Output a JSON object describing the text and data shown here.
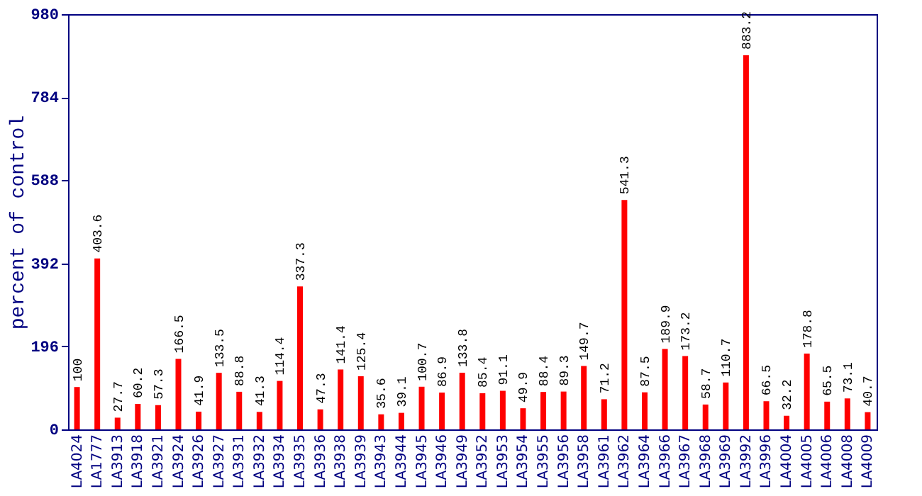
{
  "chart_data": {
    "type": "bar",
    "ylabel": "percent of control",
    "categories": [
      "LA4024",
      "LA1777",
      "LA3913",
      "LA3918",
      "LA3921",
      "LA3924",
      "LA3926",
      "LA3927",
      "LA3931",
      "LA3932",
      "LA3934",
      "LA3935",
      "LA3936",
      "LA3938",
      "LA3939",
      "LA3943",
      "LA3944",
      "LA3945",
      "LA3946",
      "LA3949",
      "LA3952",
      "LA3953",
      "LA3954",
      "LA3955",
      "LA3956",
      "LA3958",
      "LA3961",
      "LA3962",
      "LA3964",
      "LA3966",
      "LA3967",
      "LA3968",
      "LA3969",
      "LA3992",
      "LA3996",
      "LA4004",
      "LA4005",
      "LA4006",
      "LA4008",
      "LA4009"
    ],
    "values": [
      100,
      403.6,
      27.7,
      60.2,
      57.3,
      166.5,
      41.9,
      133.5,
      88.8,
      41.3,
      114.4,
      337.3,
      47.3,
      141.4,
      125.4,
      35.6,
      39.1,
      100.7,
      86.9,
      133.8,
      85.4,
      91.1,
      49.9,
      88.4,
      89.3,
      149.7,
      71.2,
      541.3,
      87.5,
      189.9,
      173.2,
      58.7,
      110.7,
      883.2,
      66.5,
      32.2,
      178.8,
      65.5,
      73.1,
      40.7
    ],
    "color": "#ff0000",
    "ylim": [
      0,
      980
    ],
    "yticks": [
      0,
      196,
      392,
      588,
      784,
      980
    ],
    "data_labels": true,
    "grid": false
  }
}
